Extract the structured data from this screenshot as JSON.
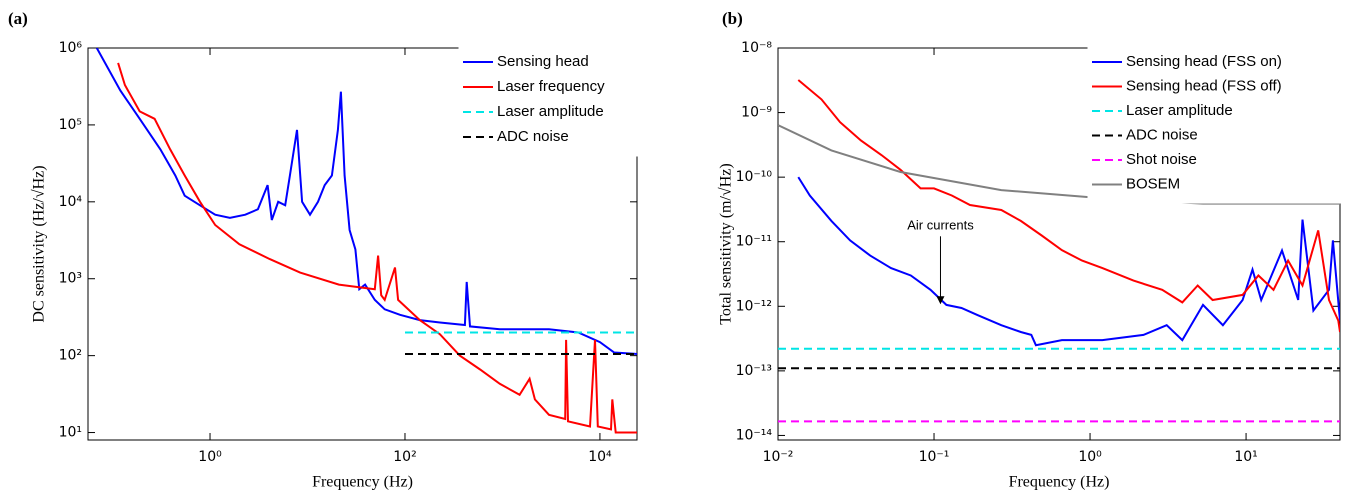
{
  "chart_data": [
    {
      "type": "line",
      "panel_label": "(a)",
      "xlabel": "Frequency (Hz)",
      "ylabel": "DC sensitivity (Hz/√Hz)",
      "xscale": "log",
      "yscale": "log",
      "xlim": [
        0.056,
        24000
      ],
      "ylim": [
        8,
        1000000
      ],
      "xticks": [
        {
          "value": 1,
          "label": "10⁰"
        },
        {
          "value": 100,
          "label": "10²"
        },
        {
          "value": 10000,
          "label": "10⁴"
        }
      ],
      "yticks": [
        {
          "value": 10,
          "label": "10¹"
        },
        {
          "value": 100,
          "label": "10²"
        },
        {
          "value": 1000,
          "label": "10³"
        },
        {
          "value": 10000,
          "label": "10⁴"
        },
        {
          "value": 100000,
          "label": "10⁵"
        },
        {
          "value": 1000000,
          "label": "10⁶"
        }
      ],
      "legend": "upper right",
      "series": [
        {
          "name": "Sensing head",
          "color": "#0000ff",
          "dash": false,
          "x": [
            0.069,
            0.12,
            0.19,
            0.31,
            0.44,
            0.55,
            0.79,
            1.13,
            1.6,
            2.3,
            3.1,
            3.9,
            4.3,
            5,
            5.9,
            6.6,
            7.8,
            8.8,
            10.6,
            12.8,
            15,
            17.8,
            20.5,
            22,
            24,
            27,
            31,
            34,
            39,
            49,
            62,
            89,
            142,
            228,
            412,
            430,
            465,
            940,
            3000,
            6000,
            10000,
            14000,
            24000
          ],
          "values": [
            1000000,
            280000,
            120000,
            48000,
            22000,
            12000,
            9000,
            6800,
            6200,
            6800,
            8000,
            16500,
            5800,
            10000,
            9000,
            22000,
            86000,
            10000,
            6800,
            10000,
            16500,
            22000,
            86000,
            270000,
            22000,
            4300,
            2400,
            730,
            840,
            530,
            400,
            340,
            290,
            270,
            250,
            910,
            240,
            220,
            220,
            200,
            150,
            110,
            105
          ]
        },
        {
          "name": "Laser frequency",
          "color": "#ff0000",
          "dash": false,
          "x": [
            0.114,
            0.134,
            0.19,
            0.27,
            0.39,
            0.55,
            0.79,
            1.13,
            2,
            4.1,
            8.4,
            21,
            49,
            53,
            57,
            62,
            79,
            85,
            142,
            228,
            365,
            590,
            940,
            1500,
            1900,
            2150,
            3000,
            4400,
            4500,
            4700,
            7900,
            8900,
            9500,
            13000,
            13400,
            14500,
            24000
          ],
          "values": [
            640000,
            330000,
            150000,
            120000,
            48000,
            22000,
            10000,
            5000,
            2800,
            1800,
            1200,
            840,
            730,
            2000,
            610,
            530,
            1400,
            530,
            290,
            190,
            100,
            66,
            43,
            31,
            50,
            27,
            17,
            15,
            160,
            14,
            12,
            160,
            12,
            11,
            27,
            10,
            10
          ]
        },
        {
          "name": "Laser amplitude",
          "color": "#00e5e5",
          "dash": true,
          "x": [
            100,
            24000
          ],
          "values": [
            200,
            200
          ]
        },
        {
          "name": "ADC noise",
          "color": "#000000",
          "dash": true,
          "x": [
            100,
            24000
          ],
          "values": [
            105,
            105
          ]
        }
      ]
    },
    {
      "type": "line",
      "panel_label": "(b)",
      "xlabel": "Frequency (Hz)",
      "ylabel": "Total sensitivity (m/√Hz)",
      "xscale": "log",
      "yscale": "log",
      "xlim": [
        0.01,
        40
      ],
      "ylim": [
        8.5e-15,
        1e-08
      ],
      "xticks": [
        {
          "value": 0.01,
          "label": "10⁻²"
        },
        {
          "value": 0.1,
          "label": "10⁻¹"
        },
        {
          "value": 1,
          "label": "10⁰"
        },
        {
          "value": 10,
          "label": "10¹"
        }
      ],
      "yticks": [
        {
          "value": 1e-14,
          "label": "10⁻¹⁴"
        },
        {
          "value": 1e-13,
          "label": "10⁻¹³"
        },
        {
          "value": 1e-12,
          "label": "10⁻¹²"
        },
        {
          "value": 1e-11,
          "label": "10⁻¹¹"
        },
        {
          "value": 1e-10,
          "label": "10⁻¹⁰"
        },
        {
          "value": 1e-09,
          "label": "10⁻⁹"
        },
        {
          "value": 1e-08,
          "label": "10⁻⁸"
        }
      ],
      "legend": "upper right",
      "annotations": [
        {
          "text": "Air currents",
          "x": 0.11,
          "y": 1e-12
        }
      ],
      "series": [
        {
          "name": "Sensing head (FSS on)",
          "color": "#0000ff",
          "dash": false,
          "x": [
            0.0135,
            0.016,
            0.022,
            0.029,
            0.039,
            0.053,
            0.071,
            0.095,
            0.12,
            0.15,
            0.19,
            0.27,
            0.36,
            0.42,
            0.45,
            0.66,
            1.2,
            2.2,
            3.1,
            3.9,
            5.3,
            7.1,
            9.5,
            11,
            12.5,
            17,
            21.6,
            23,
            27,
            34,
            36,
            40
          ],
          "values": [
            1e-10,
            5.2e-11,
            2.1e-11,
            1.05e-11,
            6.1e-12,
            3.9e-12,
            3e-12,
            1.8e-12,
            1.05e-12,
            9.4e-13,
            7.3e-13,
            5.1e-13,
            4e-13,
            3.6e-13,
            2.5e-13,
            3e-13,
            3e-13,
            3.6e-13,
            5.1e-13,
            3e-13,
            1.05e-12,
            5.1e-13,
            1.25e-12,
            3.7e-12,
            1.25e-12,
            7.3e-12,
            1.25e-12,
            2.2e-11,
            8.6e-13,
            1.8e-12,
            1.05e-11,
            6e-13
          ]
        },
        {
          "name": "Sensing head (FSS off)",
          "color": "#ff0000",
          "dash": false,
          "x": [
            0.0135,
            0.019,
            0.025,
            0.034,
            0.046,
            0.061,
            0.082,
            0.1,
            0.13,
            0.17,
            0.27,
            0.36,
            0.49,
            0.66,
            0.89,
            1.2,
            1.9,
            2.9,
            3.9,
            4.9,
            6.1,
            9.5,
            12,
            15,
            18.6,
            23,
            29,
            34,
            39,
            40
          ],
          "values": [
            3.2e-09,
            1.6e-09,
            7.1e-10,
            3.7e-10,
            2.2e-10,
            1.3e-10,
            6.7e-11,
            6.7e-11,
            5.2e-11,
            3.7e-11,
            3.1e-11,
            2.1e-11,
            1.25e-11,
            7.4e-12,
            5.1e-12,
            3.9e-12,
            2.5e-12,
            1.8e-12,
            1.15e-12,
            2.1e-12,
            1.25e-12,
            1.5e-12,
            3e-12,
            1.8e-12,
            5.1e-12,
            2.1e-12,
            1.5e-11,
            1.25e-12,
            6e-13,
            4e-13
          ]
        },
        {
          "name": "Laser amplitude",
          "color": "#00e5e5",
          "dash": true,
          "x": [
            0.01,
            40
          ],
          "values": [
            2.2e-13,
            2.2e-13
          ]
        },
        {
          "name": "ADC noise",
          "color": "#000000",
          "dash": true,
          "x": [
            0.01,
            40
          ],
          "values": [
            1.1e-13,
            1.1e-13
          ]
        },
        {
          "name": "Shot noise",
          "color": "#ff00ff",
          "dash": true,
          "x": [
            0.01,
            40
          ],
          "values": [
            1.65e-14,
            1.65e-14
          ]
        },
        {
          "name": "BOSEM",
          "color": "#808080",
          "dash": false,
          "x": [
            0.01,
            0.022,
            0.061,
            0.27,
            1.2,
            5.3,
            40
          ],
          "values": [
            6.4e-10,
            2.6e-10,
            1.2e-10,
            6.3e-11,
            4.7e-11,
            3.9e-11,
            3.9e-11
          ]
        }
      ]
    }
  ]
}
